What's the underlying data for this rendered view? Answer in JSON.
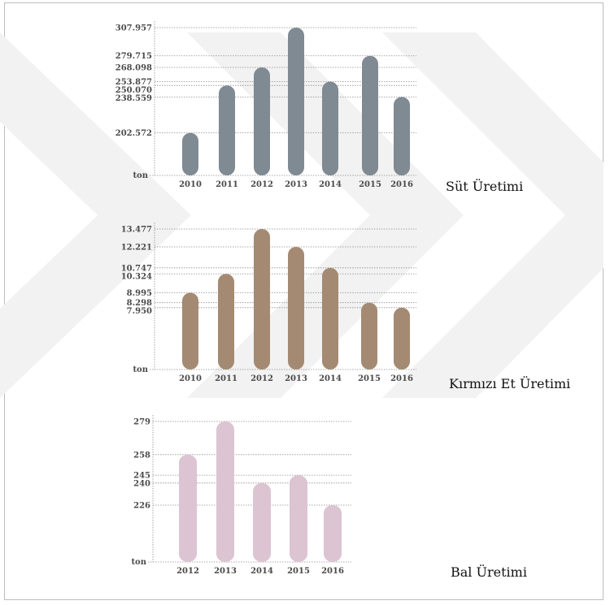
{
  "colors": {
    "watermark": "#f1f1f1",
    "grid": "#8f8f8f",
    "axis_text": "#4a4a4a"
  },
  "chart_data": [
    {
      "type": "bar",
      "title": "Süt Üretimi",
      "unit_label": "ton",
      "color": "#7f8a93",
      "categories": [
        "2010",
        "2011",
        "2012",
        "2013",
        "2014",
        "2015",
        "2016"
      ],
      "values": [
        202572,
        250070,
        268098,
        307957,
        253877,
        279715,
        238559
      ],
      "tick_labels": [
        "307.957",
        "279.715",
        "268.098",
        "253.877",
        "250.070",
        "238.559",
        "202.572"
      ],
      "grid": true
    },
    {
      "type": "bar",
      "title": "Kırmızı Et Üretimi",
      "unit_label": "ton",
      "color": "#a48a72",
      "categories": [
        "2010",
        "2011",
        "2012",
        "2013",
        "2014",
        "2015",
        "2016"
      ],
      "values": [
        8995,
        10324,
        13477,
        12221,
        10747,
        8298,
        7950
      ],
      "tick_labels": [
        "13.477",
        "12.221",
        "10.747",
        "10.324",
        "8.995",
        "8.298",
        "7.950"
      ],
      "grid": true
    },
    {
      "type": "bar",
      "title": "Bal Üretimi",
      "unit_label": "ton",
      "color": "#dcc4d2",
      "categories": [
        "2012",
        "2013",
        "2014",
        "2015",
        "2016"
      ],
      "values": [
        258,
        279,
        240,
        245,
        226
      ],
      "tick_labels": [
        "279",
        "258",
        "245",
        "240",
        "226"
      ],
      "grid": true
    }
  ]
}
